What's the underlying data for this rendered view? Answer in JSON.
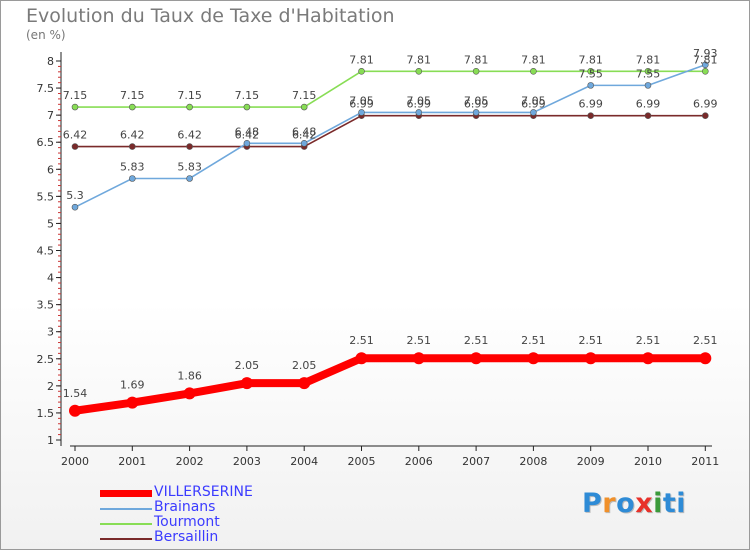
{
  "title": "Evolution du Taux de Taxe d'Habitation",
  "subtitle": "(en %)",
  "logo": {
    "text": "Proxiti",
    "colors": [
      "#2e8bd6",
      "#f0902a",
      "#2e8bd6",
      "#e8312a",
      "#3a9a3a",
      "#2e8bd6",
      "#2e8bd6"
    ]
  },
  "chart_data": {
    "type": "line",
    "title": "Evolution du Taux de Taxe d'Habitation",
    "ylabel": "(en %)",
    "xlabel": "",
    "x": [
      "2000",
      "2001",
      "2002",
      "2003",
      "2004",
      "2005",
      "2006",
      "2007",
      "2008",
      "2009",
      "2010",
      "2011"
    ],
    "ylim": [
      1,
      8
    ],
    "yticks": [
      "1",
      "1.5",
      "2",
      "2.5",
      "3",
      "3.5",
      "4",
      "4.5",
      "5",
      "5.5",
      "6",
      "6.5",
      "7",
      "7.5",
      "8"
    ],
    "grid": false,
    "legend": "bottom-left",
    "series": [
      {
        "name": "VILLERSERINE",
        "color": "#ff0000",
        "values": [
          1.54,
          1.69,
          1.86,
          2.05,
          2.05,
          2.51,
          2.51,
          2.51,
          2.51,
          2.51,
          2.51,
          2.51
        ],
        "labels": [
          "1.54",
          "1.69",
          "1.86",
          "2.05",
          "2.05",
          "2.51",
          "2.51",
          "2.51",
          "2.51",
          "2.51",
          "2.51",
          "2.51"
        ]
      },
      {
        "name": "Brainans",
        "color": "#6fa8dc",
        "values": [
          5.3,
          5.83,
          5.83,
          6.48,
          6.48,
          7.05,
          7.05,
          7.05,
          7.05,
          7.55,
          7.55,
          7.93
        ],
        "labels": [
          "5.3",
          "5.83",
          "5.83",
          "6.48",
          "6.48",
          "7.05",
          "7.05",
          "7.05",
          "7.05",
          "7.55",
          "7.55",
          "7.93"
        ]
      },
      {
        "name": "Tourmont",
        "color": "#88dd55",
        "values": [
          7.15,
          7.15,
          7.15,
          7.15,
          7.15,
          7.81,
          7.81,
          7.81,
          7.81,
          7.81,
          7.81,
          7.81
        ],
        "labels": [
          "7.15",
          "7.15",
          "7.15",
          "7.15",
          "7.15",
          "7.81",
          "7.81",
          "7.81",
          "7.81",
          "7.81",
          "7.81",
          "7.81"
        ]
      },
      {
        "name": "Bersaillin",
        "color": "#7a2a2a",
        "values": [
          6.42,
          6.42,
          6.42,
          6.42,
          6.42,
          6.99,
          6.99,
          6.99,
          6.99,
          6.99,
          6.99,
          6.99
        ],
        "labels": [
          "6.42",
          "6.42",
          "6.42",
          "6.42",
          "6.42",
          "6.99",
          "6.99",
          "6.99",
          "6.99",
          "6.99",
          "6.99",
          "6.99"
        ]
      }
    ]
  }
}
